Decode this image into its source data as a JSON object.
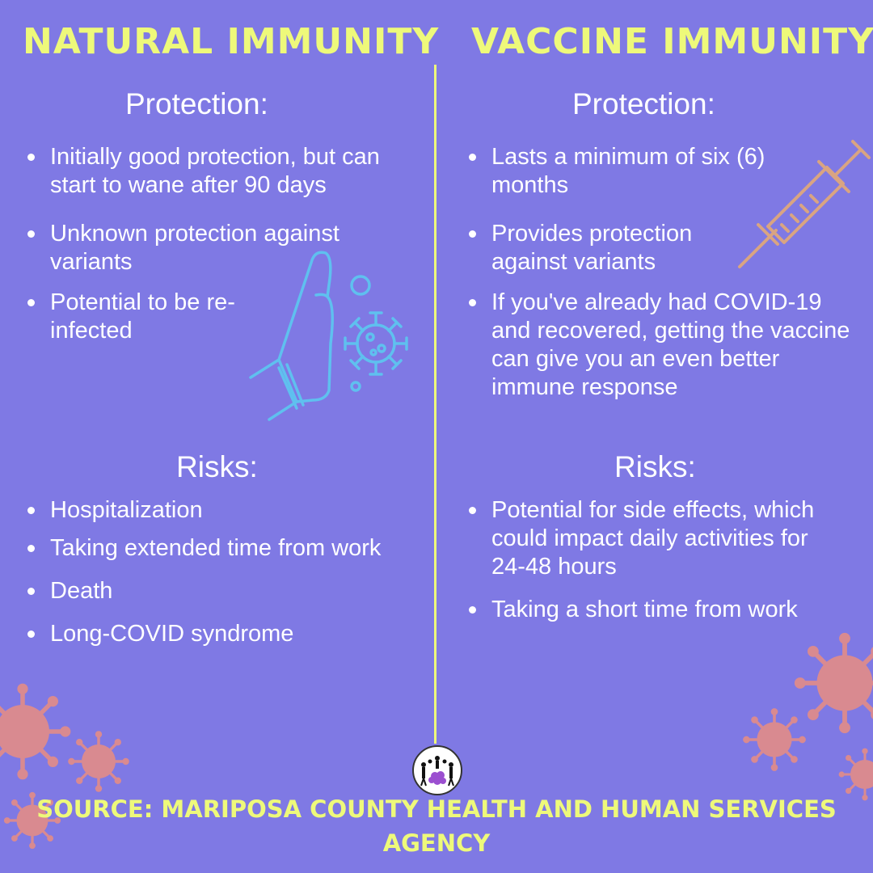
{
  "left": {
    "title": "NATURAL IMMUNITY",
    "protection": {
      "heading": "Protection:",
      "items": [
        "Initially good protection, but can start to wane after 90 days",
        "Unknown protection against variants",
        "Potential to be re-infected"
      ]
    },
    "risks": {
      "heading": "Risks:",
      "items": [
        "Hospitalization",
        "Taking extended time from work",
        "Death",
        "Long-COVID syndrome"
      ]
    }
  },
  "right": {
    "title": "VACCINE IMMUNITY",
    "protection": {
      "heading": "Protection:",
      "items": [
        "Lasts a minimum of six (6) months",
        "Provides protection against variants",
        "If you've already had COVID-19 and recovered, getting the vaccine can give you an even better immune response"
      ]
    },
    "risks": {
      "heading": "Risks:",
      "items": [
        "Potential for side effects, which could impact daily activities for 24-48 hours",
        "Taking a short time from work"
      ]
    }
  },
  "footer": {
    "source": "SOURCE: MARIPOSA COUNTY HEALTH AND HUMAN SERVICES AGENCY"
  },
  "icons": {
    "hand": "hand-stop-icon",
    "virus": "virus-icon",
    "syringe": "syringe-icon",
    "logo": "agency-logo"
  },
  "colors": {
    "background": "#7f79e4",
    "heading": "#eef97a",
    "text": "#ffffff",
    "hand_icon": "#5fc0ef",
    "syringe_icon": "#d9a482",
    "virus_decor": "#d98a90"
  }
}
